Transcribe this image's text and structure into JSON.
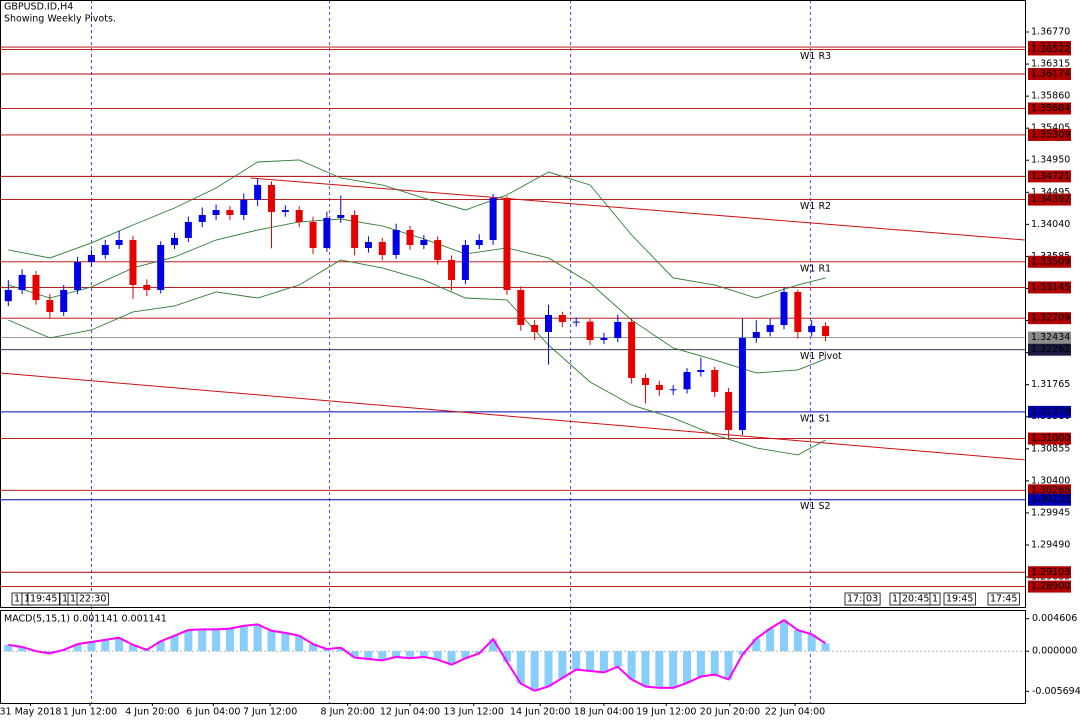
{
  "chart_data": [
    {
      "type": "candlestick",
      "title": "GBPUSD.ID,H4",
      "subtitle": "Showing Weekly Pivots.",
      "up_color": "#0000e6",
      "down_color": "#e60000",
      "xlim": [
        -0.6,
        73.4
      ],
      "ylim": [
        1.2861,
        1.37224
      ],
      "open": [
        1.3295,
        1.33109,
        1.33322,
        1.32967,
        1.32797,
        1.33109,
        1.33506,
        1.33606,
        1.33747,
        1.33818,
        1.3318,
        1.33109,
        1.33747,
        1.33847,
        1.34074,
        1.34173,
        1.34244,
        1.34173,
        1.34386,
        1.34599,
        1.34216,
        1.34244,
        1.34074,
        1.33705,
        1.34131,
        1.34173,
        1.33705,
        1.3379,
        1.33606,
        1.3396,
        1.33747,
        1.33818,
        1.33535,
        1.33251,
        1.33747,
        1.33818,
        1.34414,
        1.33109,
        1.32612,
        1.32513,
        1.32754,
        1.32655,
        1.3266,
        1.32399,
        1.32428,
        1.32655,
        1.3186,
        1.31761,
        1.3169,
        1.317,
        1.31945,
        1.31974,
        1.31662,
        1.31122,
        1.32428,
        1.32513,
        1.32612,
        1.33081,
        1.32513,
        1.32598
      ],
      "high": [
        1.3325,
        1.334,
        1.3338,
        1.3305,
        1.3318,
        1.3358,
        1.3368,
        1.3382,
        1.3395,
        1.3388,
        1.3326,
        1.338,
        1.3392,
        1.3415,
        1.3428,
        1.3432,
        1.343,
        1.3448,
        1.347,
        1.3465,
        1.3431,
        1.343,
        1.3415,
        1.3422,
        1.3445,
        1.3424,
        1.3387,
        1.3385,
        1.3405,
        1.3402,
        1.3389,
        1.3387,
        1.336,
        1.3382,
        1.339,
        1.3447,
        1.3444,
        1.3316,
        1.3268,
        1.329,
        1.328,
        1.3272,
        1.327,
        1.325,
        1.3276,
        1.327,
        1.3192,
        1.3182,
        1.3176,
        1.32,
        1.3215,
        1.3202,
        1.3172,
        1.327,
        1.3268,
        1.327,
        1.3315,
        1.3311,
        1.3268,
        1.3265
      ],
      "low": [
        1.3288,
        1.3305,
        1.329,
        1.327,
        1.3274,
        1.3305,
        1.3344,
        1.3355,
        1.3369,
        1.3298,
        1.3302,
        1.3306,
        1.3369,
        1.3379,
        1.34,
        1.341,
        1.341,
        1.341,
        1.343,
        1.337,
        1.3415,
        1.34,
        1.3362,
        1.3365,
        1.3406,
        1.336,
        1.3364,
        1.3353,
        1.3355,
        1.3368,
        1.3369,
        1.3347,
        1.331,
        1.3319,
        1.3369,
        1.3375,
        1.3304,
        1.3253,
        1.324,
        1.3205,
        1.3258,
        1.3259,
        1.3233,
        1.3234,
        1.3237,
        1.3178,
        1.315,
        1.3161,
        1.3162,
        1.3164,
        1.3188,
        1.3159,
        1.31,
        1.3105,
        1.3236,
        1.3245,
        1.3255,
        1.3242,
        1.3245,
        1.3238
      ],
      "close": [
        1.33109,
        1.33322,
        1.32967,
        1.32797,
        1.33109,
        1.33506,
        1.33606,
        1.33747,
        1.33818,
        1.3318,
        1.33109,
        1.33747,
        1.33847,
        1.34074,
        1.34173,
        1.34244,
        1.34173,
        1.34386,
        1.34599,
        1.34216,
        1.34244,
        1.34074,
        1.33705,
        1.34131,
        1.34173,
        1.33705,
        1.3379,
        1.33606,
        1.3396,
        1.33747,
        1.33818,
        1.33535,
        1.33251,
        1.33747,
        1.33818,
        1.34414,
        1.33109,
        1.32612,
        1.32513,
        1.32754,
        1.32655,
        1.3266,
        1.32399,
        1.32428,
        1.32655,
        1.3186,
        1.31761,
        1.3169,
        1.317,
        1.31945,
        1.31974,
        1.31662,
        1.31122,
        1.32428,
        1.32513,
        1.32612,
        1.33081,
        1.32513,
        1.32598,
        1.32456
      ],
      "bands": {
        "color": "#2e7d32",
        "x": [
          0,
          3,
          6,
          9,
          12,
          15,
          18,
          21,
          24,
          27,
          30,
          33,
          36,
          39,
          42,
          45,
          48,
          51,
          54,
          57,
          59
        ],
        "upper": [
          1.33677,
          1.33563,
          1.33776,
          1.34031,
          1.34272,
          1.34556,
          1.34925,
          1.34954,
          1.34698,
          1.34599,
          1.34414,
          1.34244,
          1.34457,
          1.34783,
          1.34599,
          1.33889,
          1.33279,
          1.3318,
          1.32995,
          1.3318,
          1.33279
        ],
        "middle": [
          1.3318,
          1.32995,
          1.33152,
          1.33421,
          1.33577,
          1.33818,
          1.3396,
          1.34074,
          1.34116,
          1.34017,
          1.33833,
          1.3362,
          1.33705,
          1.33563,
          1.33208,
          1.32683,
          1.32286,
          1.32116,
          1.31931,
          1.31974,
          1.3213
        ],
        "lower": [
          1.32683,
          1.32428,
          1.32541,
          1.32797,
          1.32882,
          1.33081,
          1.32995,
          1.3318,
          1.33535,
          1.33421,
          1.33251,
          1.32995,
          1.32967,
          1.32328,
          1.31803,
          1.31477,
          1.31293,
          1.31051,
          1.30867,
          1.30768,
          1.3098
        ]
      },
      "trendlines": [
        {
          "color": "#d01010",
          "x": [
            17.5,
            73.4
          ],
          "values": [
            1.34698,
            1.33818
          ]
        },
        {
          "color": "#d01010",
          "x": [
            -0.6,
            73.4
          ],
          "values": [
            1.31931,
            1.30697
          ]
        }
      ],
      "levels": [
        {
          "value": 1.36556,
          "color": "#b00000"
        },
        {
          "value": 1.36522,
          "color": "#b00000",
          "name": "W1 R3"
        },
        {
          "value": 1.36174,
          "color": "#b00000"
        },
        {
          "value": 1.35684,
          "color": "#b00000"
        },
        {
          "value": 1.35309,
          "color": "#b00000"
        },
        {
          "value": 1.34721,
          "color": "#b00000"
        },
        {
          "value": 1.34392,
          "color": "#b00000",
          "name": "W1 R2"
        },
        {
          "value": 1.33509,
          "color": "#b00000",
          "name": "W1 R1"
        },
        {
          "value": 1.33145,
          "color": "#b00000"
        },
        {
          "value": 1.32709,
          "color": "#b00000"
        },
        {
          "value": 1.32434,
          "color": "#8c8c8c"
        },
        {
          "value": 1.32262,
          "color": "#1a1a40",
          "name": "W1 Pivot"
        },
        {
          "value": 1.31379,
          "color": "#0000b0",
          "name": "W1 S1"
        },
        {
          "value": 1.31,
          "label": "1.31000",
          "color": "#b00000"
        },
        {
          "value": 1.30266,
          "color": "#b00000"
        },
        {
          "value": 1.30132,
          "color": "#0000b0",
          "name": "W1 S2"
        },
        {
          "value": 1.29103,
          "color": "#b00000"
        },
        {
          "value": 1.289,
          "label": "1.28900",
          "color": "#b00000"
        }
      ],
      "separators": [
        6.0,
        23.2,
        40.6,
        57.9
      ],
      "yticks": [
        {
          "value": 1.3677,
          "label": "1.36770"
        },
        1.36315,
        {
          "value": 1.3586,
          "label": "1.35860"
        },
        1.35405,
        {
          "value": 1.3495,
          "label": "1.34950"
        },
        1.34495,
        {
          "value": 1.3404,
          "label": "1.34040"
        },
        1.33585,
        {
          "value": 1.3313,
          "label": "1.33130"
        },
        1.32675,
        {
          "value": 1.3222,
          "label": "1.32220"
        },
        1.31765,
        {
          "value": 1.3131,
          "label": "1.31310"
        },
        1.30855,
        {
          "value": 1.304,
          "label": "1.30400"
        },
        1.29945,
        {
          "value": 1.2949,
          "label": "1.29490"
        },
        1.29035
      ],
      "xticks": [
        {
          "value": 1.6,
          "label": "31 May 2018"
        },
        {
          "value": 5.9,
          "label": "1 Jun 12:00"
        },
        {
          "value": 10.4,
          "label": "4 Jun 20:00"
        },
        {
          "value": 14.8,
          "label": "6 Jun 04:00"
        },
        {
          "value": 18.9,
          "label": "7 Jun 12:00"
        },
        {
          "value": 24.5,
          "label": "8 Jun 20:00"
        },
        {
          "value": 29.0,
          "label": "12 Jun 04:00"
        },
        {
          "value": 33.6,
          "label": "13 Jun 12:00"
        },
        {
          "value": 38.4,
          "label": "14 Jun 20:00"
        },
        {
          "value": 43.0,
          "label": "18 Jun 04:00"
        },
        {
          "value": 47.5,
          "label": "19 Jun 12:00"
        },
        {
          "value": 52.1,
          "label": "20 Jun 20:00"
        },
        {
          "value": 56.8,
          "label": "22 Jun 04:00"
        }
      ],
      "time_markers": [
        "1",
        "1",
        "19:45",
        "1",
        "1",
        "22:30",
        "17:3",
        "03",
        "1",
        "20:45",
        "1",
        "19:45",
        "17:45"
      ]
    },
    {
      "type": "macd",
      "title": "MACD(5,15,1) 0.001141 0.001141",
      "color": "#87cefa",
      "line_color": "#ff00ff",
      "xlim": [
        -0.6,
        73.4
      ],
      "ylim": [
        -0.00734,
        0.00584
      ],
      "yticks": [
        0.004606,
        {
          "value": 0,
          "label": "0.000000"
        },
        -0.005694
      ],
      "values": [
        0.0009,
        0.0006,
        0.0,
        -0.0003,
        0.0002,
        0.001,
        0.0013,
        0.0016,
        0.0019,
        0.0009,
        0.0002,
        0.0014,
        0.0022,
        0.003,
        0.0031,
        0.0031,
        0.0032,
        0.0036,
        0.0038,
        0.0029,
        0.0026,
        0.0022,
        0.001,
        0.0003,
        0.0005,
        -0.0009,
        -0.0011,
        -0.0013,
        -0.0008,
        -0.001,
        -0.0008,
        -0.0012,
        -0.0019,
        -0.001,
        -0.0003,
        0.0017,
        -0.0015,
        -0.0046,
        -0.0056,
        -0.005,
        -0.0038,
        -0.0026,
        -0.0028,
        -0.003,
        -0.0022,
        -0.004,
        -0.005,
        -0.0052,
        -0.0052,
        -0.0045,
        -0.0036,
        -0.0033,
        -0.004,
        -0.0005,
        0.0018,
        0.0032,
        0.0044,
        0.003,
        0.0024,
        0.0011
      ]
    }
  ]
}
